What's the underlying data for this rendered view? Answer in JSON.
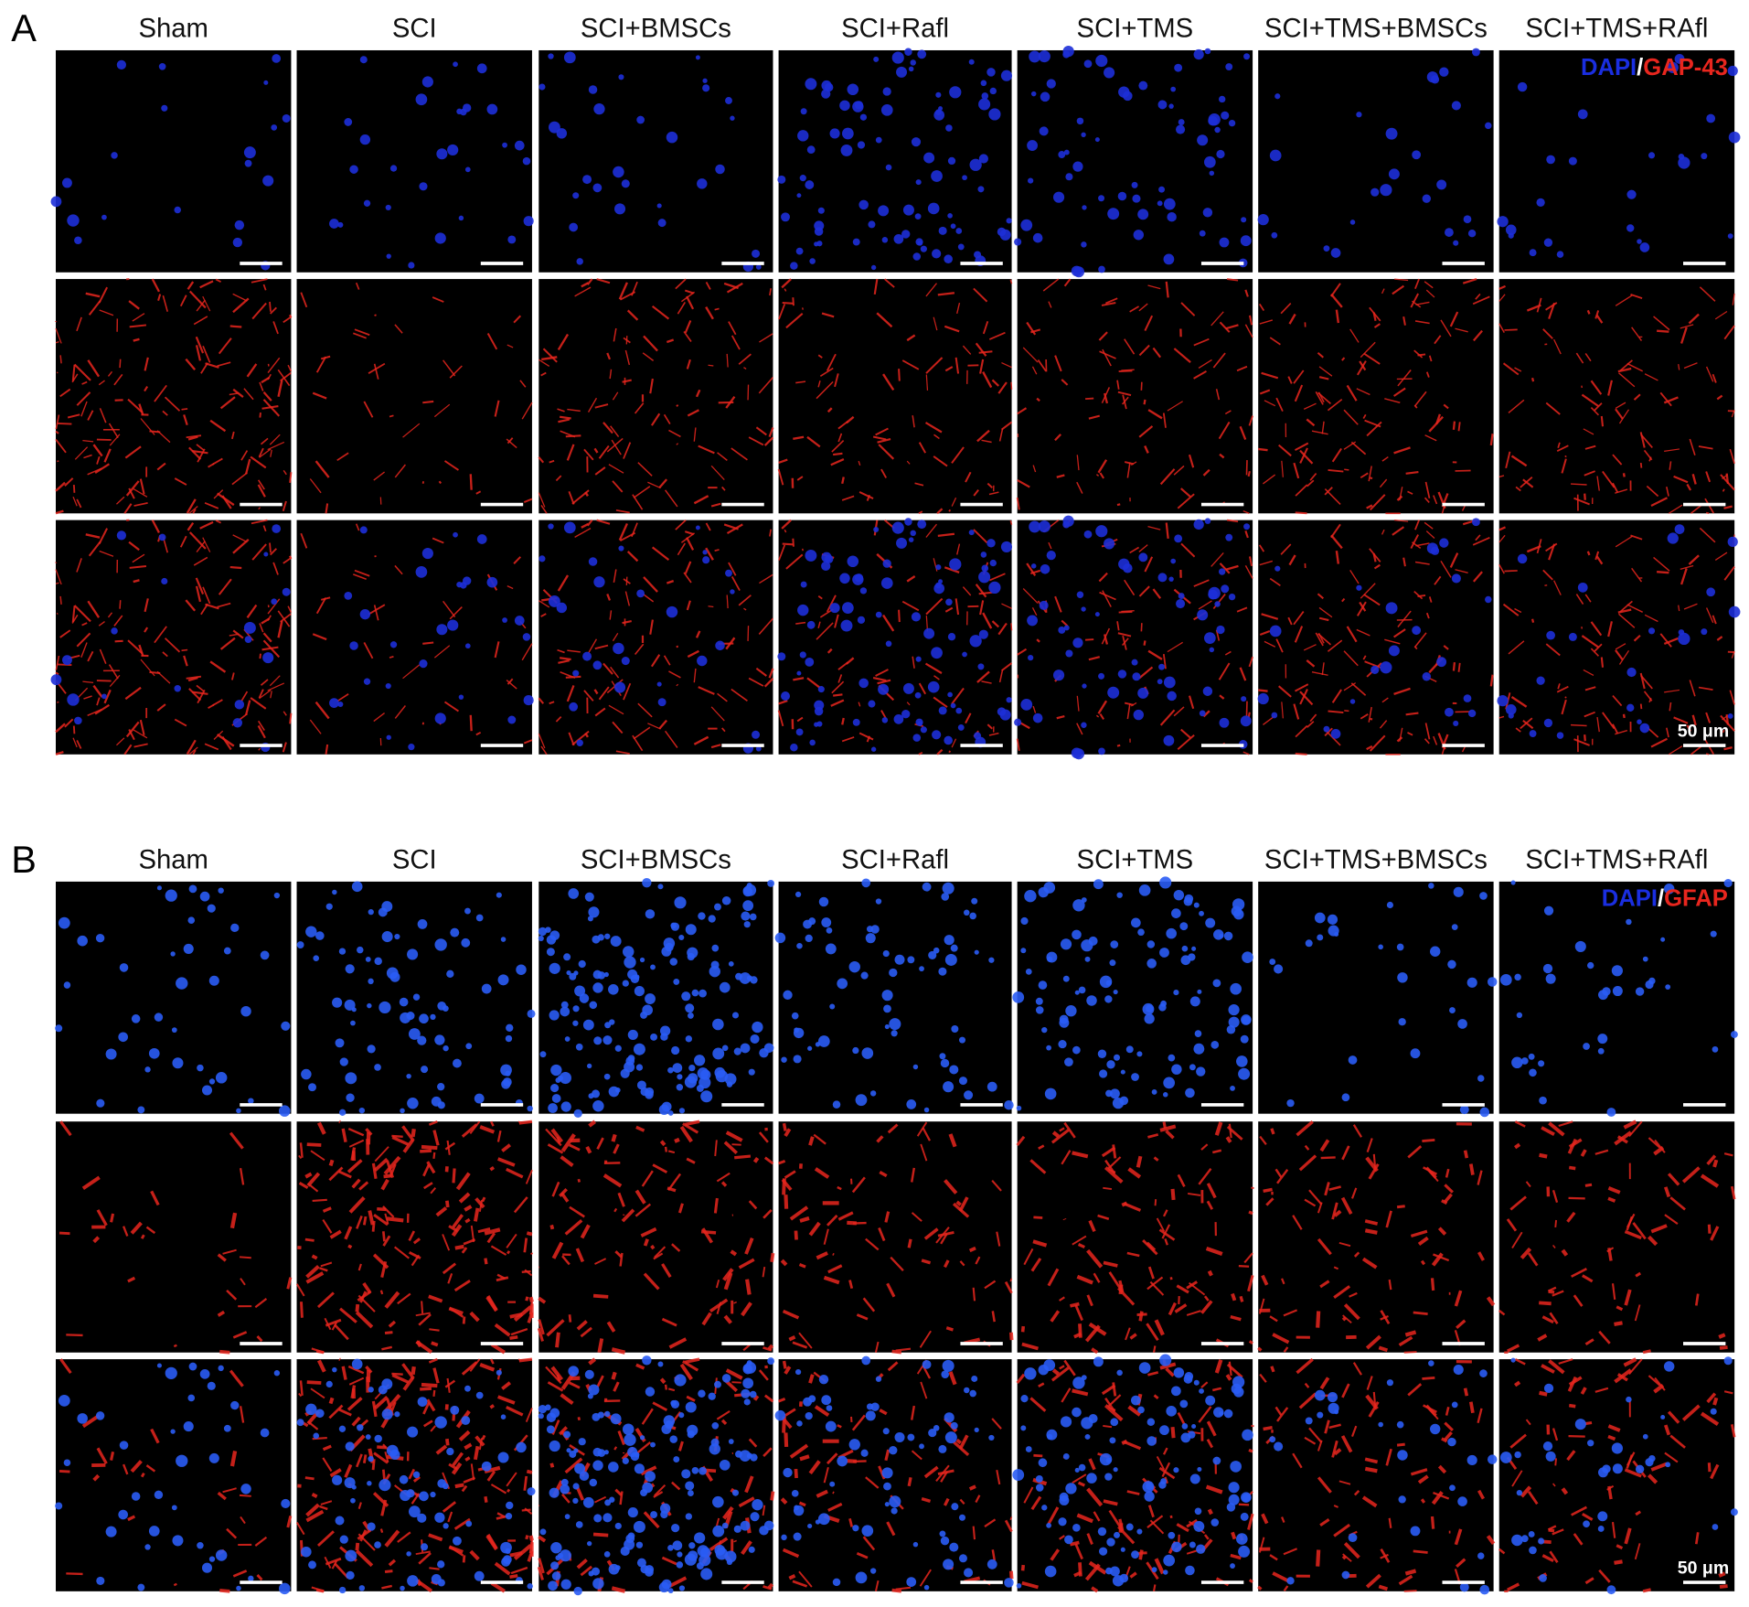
{
  "panels": [
    {
      "label": "A",
      "columns": [
        "Sham",
        "SCI",
        "SCI+BMSCs",
        "SCI+Rafl",
        "SCI+TMS",
        "SCI+TMS+BMSCs",
        "SCI+TMS+RAfl"
      ],
      "legend": {
        "stain1": "DAPI",
        "separator": "/",
        "stain2": "GAP-43"
      },
      "scale_bar": "50 μm"
    },
    {
      "label": "B",
      "columns": [
        "Sham",
        "SCI",
        "SCI+BMSCs",
        "SCI+Rafl",
        "SCI+TMS",
        "SCI+TMS+BMSCs",
        "SCI+TMS+RAfl"
      ],
      "legend": {
        "stain1": "DAPI",
        "separator": "/",
        "stain2": "GFAP"
      },
      "scale_bar": "50 μm"
    }
  ]
}
